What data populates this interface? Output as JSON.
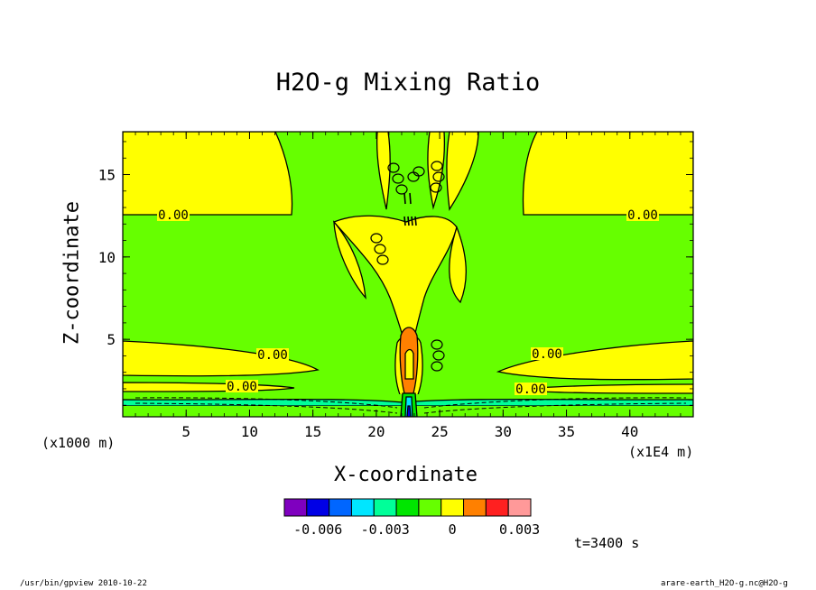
{
  "chart_data": {
    "type": "heatmap",
    "title": "H2O-g Mixing Ratio",
    "xlabel": "X-coordinate",
    "ylabel": "Z-coordinate",
    "x_unit": "(x1E4 m)",
    "y_unit": "(x1000 m)",
    "xlim": [
      0,
      45
    ],
    "ylim": [
      0.3,
      17.6
    ],
    "x_ticks": [
      5,
      10,
      15,
      20,
      25,
      30,
      35,
      40
    ],
    "y_ticks": [
      5,
      10,
      15
    ],
    "contour_labels": [
      "0.00",
      "0.00",
      "0.00",
      "0.00",
      "0.00",
      "0.00"
    ],
    "colorbar": {
      "colors": [
        "#7f00bf",
        "#0000e6",
        "#0066ff",
        "#00e6ff",
        "#00ff99",
        "#00e600",
        "#66ff00",
        "#ffff00",
        "#ff8000",
        "#ff2020",
        "#ff9999"
      ],
      "tick_labels": [
        "-0.006",
        "-0.003",
        "0",
        "0.003"
      ],
      "tick_values": [
        -0.006,
        -0.003,
        0,
        0.003
      ]
    },
    "time_label": "t=3400 s"
  },
  "footer": {
    "left": "/usr/bin/gpview  2010-10-22",
    "right": "arare-earth_H2O-g.nc@H2O-g"
  },
  "colors": {
    "background": "#ffffff",
    "frame": "#000000"
  }
}
